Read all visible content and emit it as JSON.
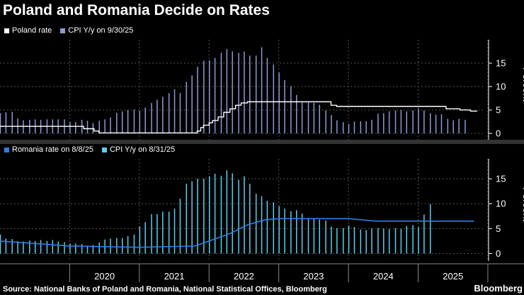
{
  "title": "Poland and Romania Decide on Rates",
  "source": "Source: National Banks of Poland and Romania, National Statistical Offices, Bloomberg",
  "brand": "Bloomberg",
  "colors": {
    "background": "#000000",
    "poland_rate": "#ffffff",
    "poland_cpi": "#8a9cd6",
    "romania_rate": "#2d7fe0",
    "romania_cpi": "#5ccfee",
    "grid": "#555555"
  },
  "chart_data": [
    {
      "type": "bar+line",
      "ylabel": "Percent",
      "ylim": [
        -1.5,
        20
      ],
      "yticks": [
        0,
        5,
        10,
        15
      ],
      "x_ticks": [
        "2020",
        "2021",
        "2022",
        "2023",
        "2024",
        "2025"
      ],
      "legend_position": "top-left",
      "grid": true,
      "series": [
        {
          "name": "Poland rate",
          "kind": "line",
          "shape": "step",
          "points": [
            [
              2019.0,
              1.5
            ],
            [
              2020.2,
              1.0
            ],
            [
              2020.35,
              0.5
            ],
            [
              2020.42,
              0.1
            ],
            [
              2021.8,
              0.1
            ],
            [
              2021.83,
              0.5
            ],
            [
              2021.88,
              1.25
            ],
            [
              2021.92,
              1.75
            ],
            [
              2022.0,
              2.25
            ],
            [
              2022.05,
              2.75
            ],
            [
              2022.13,
              3.5
            ],
            [
              2022.21,
              4.5
            ],
            [
              2022.3,
              5.25
            ],
            [
              2022.38,
              6.0
            ],
            [
              2022.46,
              6.5
            ],
            [
              2022.55,
              6.75
            ],
            [
              2022.71,
              6.75
            ],
            [
              2023.73,
              6.75
            ],
            [
              2023.75,
              6.0
            ],
            [
              2023.83,
              5.75
            ],
            [
              2024.0,
              5.75
            ],
            [
              2025.38,
              5.75
            ],
            [
              2025.4,
              5.25
            ],
            [
              2025.6,
              5.0
            ],
            [
              2025.75,
              4.75
            ],
            [
              2025.85,
              4.75
            ]
          ]
        },
        {
          "name": "CPI Y/y on 9/30/25",
          "kind": "bar",
          "points": [
            [
              2019.0,
              4.3
            ],
            [
              2019.08,
              4.5
            ],
            [
              2019.17,
              4.6
            ],
            [
              2019.25,
              3.2
            ],
            [
              2019.33,
              2.8
            ],
            [
              2019.42,
              2.9
            ],
            [
              2019.5,
              3.0
            ],
            [
              2019.58,
              2.9
            ],
            [
              2019.67,
              3.0
            ],
            [
              2019.75,
              3.0
            ],
            [
              2019.83,
              3.0
            ],
            [
              2019.92,
              3.0
            ],
            [
              2020.0,
              2.4
            ],
            [
              2020.08,
              2.4
            ],
            [
              2020.17,
              2.9
            ],
            [
              2020.25,
              2.7
            ],
            [
              2020.33,
              2.2
            ],
            [
              2020.42,
              2.7
            ],
            [
              2020.5,
              3.0
            ],
            [
              2020.58,
              3.4
            ],
            [
              2020.67,
              4.4
            ],
            [
              2020.75,
              4.7
            ],
            [
              2020.83,
              5.0
            ],
            [
              2020.92,
              5.1
            ],
            [
              2021.0,
              4.8
            ],
            [
              2021.08,
              5.5
            ],
            [
              2021.17,
              6.5
            ],
            [
              2021.25,
              7.2
            ],
            [
              2021.33,
              7.8
            ],
            [
              2021.42,
              8.6
            ],
            [
              2021.5,
              9.4
            ],
            [
              2021.58,
              8.6
            ],
            [
              2021.67,
              11.0
            ],
            [
              2021.75,
              12.4
            ],
            [
              2021.83,
              14.2
            ],
            [
              2021.92,
              15.5
            ],
            [
              2022.0,
              15.6
            ],
            [
              2022.08,
              16.1
            ],
            [
              2022.17,
              17.2
            ],
            [
              2022.25,
              18.0
            ],
            [
              2022.33,
              17.5
            ],
            [
              2022.42,
              17.2
            ],
            [
              2022.5,
              17.5
            ],
            [
              2022.58,
              16.6
            ],
            [
              2022.67,
              16.6
            ],
            [
              2022.75,
              18.4
            ],
            [
              2022.83,
              16.1
            ],
            [
              2022.92,
              14.7
            ],
            [
              2023.0,
              13.0
            ],
            [
              2023.08,
              11.4
            ],
            [
              2023.17,
              10.1
            ],
            [
              2023.25,
              8.2
            ],
            [
              2023.33,
              6.6
            ],
            [
              2023.42,
              6.6
            ],
            [
              2023.5,
              6.5
            ],
            [
              2023.58,
              6.1
            ],
            [
              2023.67,
              4.9
            ],
            [
              2023.75,
              3.9
            ],
            [
              2023.83,
              2.8
            ],
            [
              2023.92,
              2.4
            ],
            [
              2024.0,
              2.0
            ],
            [
              2024.08,
              2.5
            ],
            [
              2024.17,
              2.6
            ],
            [
              2024.25,
              2.6
            ],
            [
              2024.33,
              2.9
            ],
            [
              2024.42,
              4.2
            ],
            [
              2024.5,
              4.3
            ],
            [
              2024.58,
              4.7
            ],
            [
              2024.67,
              4.9
            ],
            [
              2024.75,
              5.0
            ],
            [
              2024.83,
              4.7
            ],
            [
              2024.92,
              4.9
            ],
            [
              2025.0,
              5.3
            ],
            [
              2025.08,
              4.9
            ],
            [
              2025.17,
              4.3
            ],
            [
              2025.25,
              4.0
            ],
            [
              2025.33,
              4.1
            ],
            [
              2025.42,
              3.1
            ],
            [
              2025.5,
              2.8
            ],
            [
              2025.58,
              3.1
            ],
            [
              2025.67,
              2.9
            ]
          ]
        }
      ]
    },
    {
      "type": "bar+line",
      "ylabel": "Percent",
      "ylim": [
        -1.5,
        19
      ],
      "yticks": [
        0,
        5,
        10,
        15
      ],
      "x_ticks": [
        "2020",
        "2021",
        "2022",
        "2023",
        "2024",
        "2025"
      ],
      "legend_position": "top-left",
      "grid": true,
      "series": [
        {
          "name": "Romania rate on 8/8/25",
          "kind": "line",
          "shape": "smooth",
          "points": [
            [
              2019.0,
              2.5
            ],
            [
              2020.0,
              1.5
            ],
            [
              2021.0,
              1.25
            ],
            [
              2021.8,
              1.5
            ],
            [
              2022.0,
              2.5
            ],
            [
              2022.3,
              4.0
            ],
            [
              2022.55,
              5.75
            ],
            [
              2022.8,
              6.75
            ],
            [
              2023.0,
              7.0
            ],
            [
              2024.0,
              7.0
            ],
            [
              2024.4,
              6.5
            ],
            [
              2024.8,
              6.5
            ],
            [
              2025.8,
              6.5
            ]
          ]
        },
        {
          "name": "CPI Y/y on 8/31/25",
          "kind": "bar",
          "points": [
            [
              2019.0,
              3.8
            ],
            [
              2019.08,
              3.0
            ],
            [
              2019.17,
              2.9
            ],
            [
              2019.25,
              2.5
            ],
            [
              2019.33,
              2.4
            ],
            [
              2019.42,
              2.6
            ],
            [
              2019.5,
              2.5
            ],
            [
              2019.58,
              2.7
            ],
            [
              2019.67,
              2.5
            ],
            [
              2019.75,
              2.7
            ],
            [
              2019.83,
              2.4
            ],
            [
              2019.92,
              2.3
            ],
            [
              2020.0,
              2.0
            ],
            [
              2020.08,
              2.0
            ],
            [
              2020.17,
              1.9
            ],
            [
              2020.25,
              1.6
            ],
            [
              2020.33,
              1.7
            ],
            [
              2020.42,
              2.2
            ],
            [
              2020.5,
              2.8
            ],
            [
              2020.58,
              3.0
            ],
            [
              2020.67,
              3.1
            ],
            [
              2020.75,
              3.1
            ],
            [
              2020.83,
              3.5
            ],
            [
              2020.92,
              3.8
            ],
            [
              2021.0,
              5.4
            ],
            [
              2021.08,
              6.3
            ],
            [
              2021.17,
              7.9
            ],
            [
              2021.25,
              7.9
            ],
            [
              2021.33,
              8.4
            ],
            [
              2021.42,
              8.4
            ],
            [
              2021.5,
              9.0
            ],
            [
              2021.58,
              11.0
            ],
            [
              2021.67,
              14.0
            ],
            [
              2021.75,
              14.5
            ],
            [
              2021.83,
              15.0
            ],
            [
              2021.92,
              15.0
            ],
            [
              2022.0,
              15.5
            ],
            [
              2022.08,
              16.0
            ],
            [
              2022.17,
              15.6
            ],
            [
              2022.25,
              16.7
            ],
            [
              2022.33,
              16.1
            ],
            [
              2022.42,
              14.8
            ],
            [
              2022.5,
              15.5
            ],
            [
              2022.58,
              14.0
            ],
            [
              2022.67,
              12.0
            ],
            [
              2022.75,
              11.5
            ],
            [
              2022.83,
              10.6
            ],
            [
              2022.92,
              10.3
            ],
            [
              2023.0,
              9.5
            ],
            [
              2023.08,
              9.0
            ],
            [
              2023.17,
              8.5
            ],
            [
              2023.25,
              8.7
            ],
            [
              2023.33,
              8.0
            ],
            [
              2023.42,
              7.0
            ],
            [
              2023.5,
              7.0
            ],
            [
              2023.58,
              6.8
            ],
            [
              2023.67,
              6.6
            ],
            [
              2023.75,
              5.4
            ],
            [
              2023.83,
              5.1
            ],
            [
              2023.92,
              5.1
            ],
            [
              2024.0,
              5.6
            ],
            [
              2024.08,
              5.3
            ],
            [
              2024.17,
              4.8
            ],
            [
              2024.25,
              4.7
            ],
            [
              2024.33,
              5.0
            ],
            [
              2024.42,
              5.1
            ],
            [
              2024.5,
              5.0
            ],
            [
              2024.58,
              4.9
            ],
            [
              2024.67,
              5.1
            ],
            [
              2024.75,
              4.9
            ],
            [
              2024.83,
              5.5
            ],
            [
              2024.92,
              5.7
            ],
            [
              2025.0,
              5.3
            ],
            [
              2025.08,
              7.8
            ],
            [
              2025.17,
              9.9
            ]
          ]
        }
      ]
    }
  ]
}
